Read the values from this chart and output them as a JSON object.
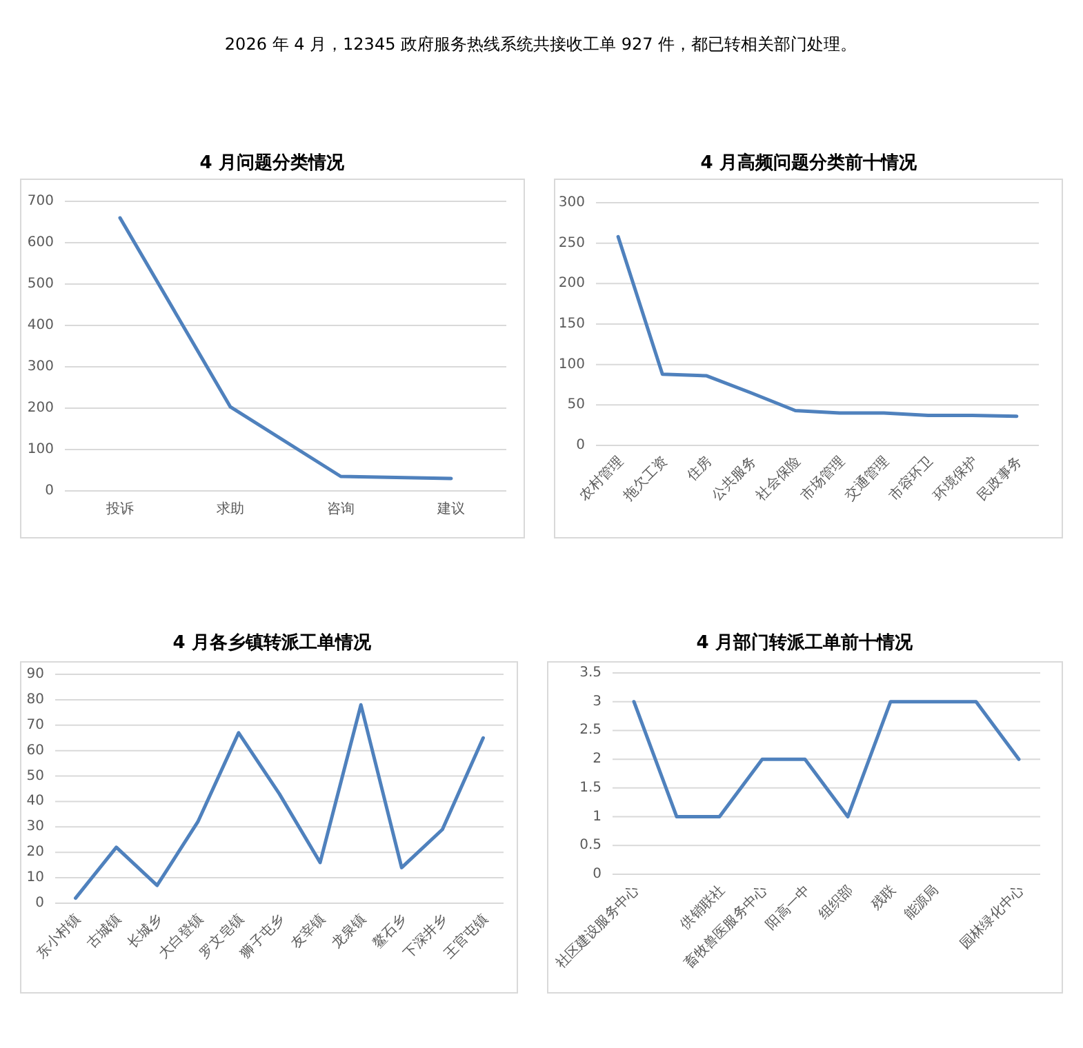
{
  "chart_data": [
    {
      "type": "other",
      "title": "2026 年 4 月，12345 政府服务热线系统共接收工单 927 件，都已转相关部门处理。"
    },
    {
      "type": "line",
      "title": "4 月问题分类情况",
      "categories": [
        "投诉",
        "求助",
        "咨询",
        "建议"
      ],
      "series": [
        {
          "color": "#4f81bd",
          "values": [
            660,
            203,
            35,
            30
          ]
        }
      ],
      "ylim": [
        0,
        700
      ],
      "yticks": [
        0,
        100,
        200,
        300,
        400,
        500,
        600,
        700
      ],
      "grid": "y"
    },
    {
      "type": "line",
      "title": "4 月高频问题分类前十情况",
      "categories": [
        "农村管理",
        "拖欠工资",
        "住房",
        "公共服务",
        "社会保险",
        "市场管理",
        "交通管理",
        "市容环卫",
        "环境保护",
        "民政事务"
      ],
      "series": [
        {
          "color": "#4f81bd",
          "values": [
            258,
            88,
            86,
            65,
            43,
            40,
            40,
            37,
            37,
            36
          ]
        }
      ],
      "ylim": [
        0,
        300
      ],
      "yticks": [
        0,
        50,
        100,
        150,
        200,
        250,
        300
      ],
      "grid": "y"
    },
    {
      "type": "line",
      "title": "4 月各乡镇转派工单情况",
      "categories": [
        "东小村镇",
        "古城镇",
        "长城乡",
        "大白登镇",
        "罗文皂镇",
        "狮子屯乡",
        "友宰镇",
        "龙泉镇",
        "鳌石乡",
        "下深井乡",
        "王官屯镇"
      ],
      "series": [
        {
          "color": "#4f81bd",
          "values": [
            2,
            22,
            7,
            32,
            67,
            43,
            16,
            78,
            14,
            29,
            65
          ]
        }
      ],
      "ylim": [
        0,
        90
      ],
      "yticks": [
        0,
        10,
        20,
        30,
        40,
        50,
        60,
        70,
        80,
        90
      ],
      "grid": "y"
    },
    {
      "type": "line",
      "title": "4 月部门转派工单前十情况",
      "categories": [
        "社区建设服务中心",
        null,
        "供销联社",
        "畜牧兽医服务中心",
        "阳高一中",
        "组织部",
        "残联",
        "能源局",
        null,
        "园林绿化中心"
      ],
      "series": [
        {
          "color": "#4f81bd",
          "values": [
            3,
            1,
            1,
            2,
            2,
            1,
            3,
            3,
            3,
            2
          ]
        }
      ],
      "ylim": [
        0,
        3.5
      ],
      "yticks": [
        0,
        0.5,
        1,
        1.5,
        2,
        2.5,
        3,
        3.5
      ],
      "grid": "y"
    }
  ]
}
